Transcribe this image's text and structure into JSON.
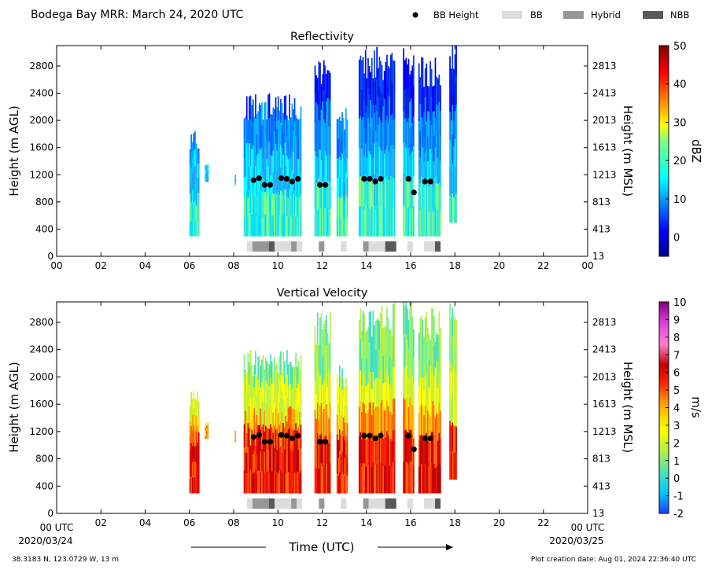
{
  "figure": {
    "title": "Bodega Bay MRR:  March 24, 2020 UTC",
    "legend": [
      {
        "label": "BB Height",
        "marker": "dot",
        "color": "#000000"
      },
      {
        "label": "BB",
        "marker": "bar",
        "color": "#dcdcdc"
      },
      {
        "label": "Hybrid",
        "marker": "bar",
        "color": "#969696"
      },
      {
        "label": "NBB",
        "marker": "bar",
        "color": "#595959"
      }
    ],
    "xlabel": "Time (UTC)",
    "x_start_label": "00 UTC",
    "x_end_label": "00 UTC",
    "date_start": "2020/03/24",
    "date_end": "2020/03/25",
    "location": "38.3183 N, 123.0729 W, 13 m",
    "creation": "Plot creation date: Aug 01, 2024 22:36:40 UTC"
  },
  "chart_data": [
    {
      "type": "heatmap",
      "title": "Reflectivity",
      "ylabel": "Height (m AGL)",
      "ylabel_right": "Height (m MSL)",
      "xlim": [
        0,
        24
      ],
      "ylim": [
        0,
        3100
      ],
      "x_ticks": [
        "00",
        "02",
        "04",
        "06",
        "08",
        "10",
        "12",
        "14",
        "16",
        "18",
        "20",
        "22",
        "00"
      ],
      "y_ticks": [
        0,
        400,
        800,
        1200,
        1600,
        2000,
        2400,
        2800
      ],
      "y_ticks_right": [
        13,
        413,
        813,
        1213,
        1613,
        2013,
        2413,
        2813
      ],
      "colorbar": {
        "label": "dBZ",
        "range": [
          -5,
          50
        ],
        "ticks": [
          0,
          10,
          20,
          30,
          40,
          50
        ],
        "colormap": "jet"
      },
      "bb_height": [
        {
          "x": 8.9,
          "y": 1120
        },
        {
          "x": 9.15,
          "y": 1150
        },
        {
          "x": 9.4,
          "y": 1050
        },
        {
          "x": 9.65,
          "y": 1050
        },
        {
          "x": 10.15,
          "y": 1150
        },
        {
          "x": 10.4,
          "y": 1140
        },
        {
          "x": 10.65,
          "y": 1100
        },
        {
          "x": 10.9,
          "y": 1140
        },
        {
          "x": 11.9,
          "y": 1050
        },
        {
          "x": 12.15,
          "y": 1050
        },
        {
          "x": 13.9,
          "y": 1140
        },
        {
          "x": 14.15,
          "y": 1140
        },
        {
          "x": 14.4,
          "y": 1100
        },
        {
          "x": 14.65,
          "y": 1140
        },
        {
          "x": 15.9,
          "y": 1140
        },
        {
          "x": 16.15,
          "y": 940
        },
        {
          "x": 16.65,
          "y": 1100
        },
        {
          "x": 16.9,
          "y": 1100
        }
      ],
      "bb_type": [
        {
          "start": 8.6,
          "end": 8.85,
          "type": "BB"
        },
        {
          "start": 8.85,
          "end": 9.6,
          "type": "Hybrid"
        },
        {
          "start": 9.6,
          "end": 9.85,
          "type": "NBB"
        },
        {
          "start": 9.85,
          "end": 10.6,
          "type": "BB"
        },
        {
          "start": 10.6,
          "end": 10.85,
          "type": "Hybrid"
        },
        {
          "start": 10.85,
          "end": 11.1,
          "type": "BB"
        },
        {
          "start": 11.85,
          "end": 12.1,
          "type": "Hybrid"
        },
        {
          "start": 12.85,
          "end": 13.1,
          "type": "BB"
        },
        {
          "start": 13.85,
          "end": 14.1,
          "type": "Hybrid"
        },
        {
          "start": 14.1,
          "end": 14.85,
          "type": "BB"
        },
        {
          "start": 14.85,
          "end": 15.35,
          "type": "NBB"
        },
        {
          "start": 15.85,
          "end": 16.1,
          "type": "BB"
        },
        {
          "start": 16.6,
          "end": 17.1,
          "type": "BB"
        },
        {
          "start": 17.1,
          "end": 17.35,
          "type": "NBB"
        }
      ]
    },
    {
      "type": "heatmap",
      "title": "Vertical Velocity",
      "ylabel": "Height (m AGL)",
      "ylabel_right": "Height (m MSL)",
      "xlim": [
        0,
        24
      ],
      "ylim": [
        0,
        3100
      ],
      "x_ticks": [
        "",
        "02",
        "04",
        "06",
        "08",
        "10",
        "12",
        "14",
        "16",
        "18",
        "20",
        "22",
        ""
      ],
      "y_ticks": [
        0,
        400,
        800,
        1200,
        1600,
        2000,
        2400,
        2800
      ],
      "y_ticks_right": [
        13,
        413,
        813,
        1213,
        1613,
        2013,
        2413,
        2813
      ],
      "colorbar": {
        "label": "m/s",
        "range": [
          -2,
          10
        ],
        "ticks": [
          -2,
          -1,
          0,
          1,
          2,
          3,
          4,
          5,
          6,
          7,
          8,
          9,
          10
        ],
        "colormap": "velocity"
      },
      "bb_height": [
        {
          "x": 8.9,
          "y": 1120
        },
        {
          "x": 9.15,
          "y": 1150
        },
        {
          "x": 9.4,
          "y": 1050
        },
        {
          "x": 9.65,
          "y": 1050
        },
        {
          "x": 10.15,
          "y": 1150
        },
        {
          "x": 10.4,
          "y": 1140
        },
        {
          "x": 10.65,
          "y": 1100
        },
        {
          "x": 10.9,
          "y": 1140
        },
        {
          "x": 11.9,
          "y": 1050
        },
        {
          "x": 12.15,
          "y": 1050
        },
        {
          "x": 13.9,
          "y": 1140
        },
        {
          "x": 14.15,
          "y": 1140
        },
        {
          "x": 14.4,
          "y": 1100
        },
        {
          "x": 14.65,
          "y": 1140
        },
        {
          "x": 15.9,
          "y": 1140
        },
        {
          "x": 16.15,
          "y": 940
        },
        {
          "x": 16.65,
          "y": 1100
        },
        {
          "x": 16.9,
          "y": 1100
        }
      ],
      "bb_type": [
        {
          "start": 8.6,
          "end": 8.85,
          "type": "BB"
        },
        {
          "start": 8.85,
          "end": 9.6,
          "type": "Hybrid"
        },
        {
          "start": 9.6,
          "end": 9.85,
          "type": "NBB"
        },
        {
          "start": 9.85,
          "end": 10.6,
          "type": "BB"
        },
        {
          "start": 10.6,
          "end": 10.85,
          "type": "Hybrid"
        },
        {
          "start": 10.85,
          "end": 11.1,
          "type": "BB"
        },
        {
          "start": 11.85,
          "end": 12.1,
          "type": "Hybrid"
        },
        {
          "start": 12.85,
          "end": 13.1,
          "type": "BB"
        },
        {
          "start": 13.85,
          "end": 14.1,
          "type": "Hybrid"
        },
        {
          "start": 14.1,
          "end": 14.85,
          "type": "BB"
        },
        {
          "start": 14.85,
          "end": 15.35,
          "type": "NBB"
        },
        {
          "start": 15.85,
          "end": 16.1,
          "type": "BB"
        },
        {
          "start": 16.6,
          "end": 17.1,
          "type": "BB"
        },
        {
          "start": 17.1,
          "end": 17.35,
          "type": "NBB"
        }
      ]
    }
  ],
  "precip_columns": [
    {
      "start": 6.0,
      "end": 6.45,
      "top": 1720,
      "bottom": 300
    },
    {
      "start": 6.7,
      "end": 6.85,
      "top": 1350,
      "bottom": 1100
    },
    {
      "start": 8.05,
      "end": 8.1,
      "top": 1200,
      "bottom": 1050
    },
    {
      "start": 8.45,
      "end": 11.05,
      "top": 2200,
      "bottom": 300
    },
    {
      "start": 11.65,
      "end": 12.35,
      "top": 2700,
      "bottom": 300
    },
    {
      "start": 12.65,
      "end": 13.15,
      "top": 2000,
      "bottom": 300
    },
    {
      "start": 13.65,
      "end": 15.25,
      "top": 2850,
      "bottom": 300
    },
    {
      "start": 15.65,
      "end": 16.15,
      "top": 2950,
      "bottom": 300
    },
    {
      "start": 16.35,
      "end": 17.35,
      "top": 2750,
      "bottom": 300
    },
    {
      "start": 17.75,
      "end": 18.05,
      "top": 3000,
      "bottom": 500
    }
  ]
}
